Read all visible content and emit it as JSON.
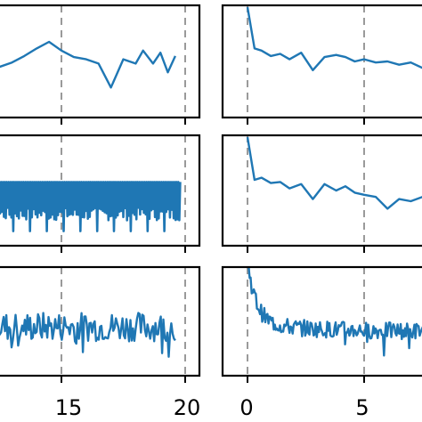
{
  "chart_data": [
    {
      "type": "line",
      "panel": "row1-left",
      "xlim": [
        10,
        20.5
      ],
      "vlines": [
        15,
        20
      ],
      "grid": false,
      "series": [
        {
          "color": "#1f77b4",
          "x": [
            10.0,
            10.5,
            11.0,
            11.5,
            12.0,
            12.5,
            13.0,
            13.5,
            14.0,
            14.5,
            15.0,
            15.5,
            16.0,
            16.5,
            17.0,
            17.5,
            18.0,
            18.3,
            18.7,
            19.0,
            19.3,
            19.6
          ],
          "y": [
            0.46,
            0.5,
            0.44,
            0.48,
            0.52,
            0.45,
            0.49,
            0.55,
            0.62,
            0.68,
            0.6,
            0.54,
            0.52,
            0.48,
            0.26,
            0.52,
            0.48,
            0.6,
            0.48,
            0.58,
            0.4,
            0.55
          ]
        }
      ]
    },
    {
      "type": "line",
      "panel": "row1-right",
      "xlim": [
        -1,
        9
      ],
      "vlines": [
        0,
        5
      ],
      "grid": false,
      "series": [
        {
          "color": "#1f77b4",
          "x": [
            0.0,
            0.3,
            0.6,
            1.0,
            1.4,
            1.8,
            2.3,
            2.8,
            3.3,
            3.8,
            4.2,
            4.6,
            5.0,
            5.5,
            6.0,
            6.5,
            7.0,
            7.5,
            8.0,
            8.5
          ],
          "y": [
            1.0,
            0.62,
            0.6,
            0.55,
            0.57,
            0.52,
            0.58,
            0.42,
            0.54,
            0.56,
            0.54,
            0.5,
            0.52,
            0.49,
            0.5,
            0.47,
            0.49,
            0.44,
            0.46,
            0.48
          ]
        }
      ]
    },
    {
      "type": "line",
      "panel": "row2-left",
      "xlim": [
        10,
        20.5
      ],
      "vlines": [
        15,
        20
      ],
      "grid": false,
      "series": [
        {
          "color": "#1f77b4",
          "pattern": "dense-oscillation",
          "y_range": [
            0.15,
            0.6
          ],
          "x_range": [
            10.0,
            19.8
          ]
        }
      ]
    },
    {
      "type": "line",
      "panel": "row2-right",
      "xlim": [
        -1,
        9
      ],
      "vlines": [
        0,
        5
      ],
      "grid": false,
      "series": [
        {
          "color": "#1f77b4",
          "x": [
            0.0,
            0.3,
            0.6,
            1.0,
            1.4,
            1.8,
            2.3,
            2.8,
            3.3,
            3.8,
            4.2,
            4.6,
            5.0,
            5.5,
            6.0,
            6.5,
            7.0,
            7.5,
            8.0,
            8.5
          ],
          "y": [
            1.0,
            0.6,
            0.62,
            0.57,
            0.58,
            0.52,
            0.56,
            0.42,
            0.56,
            0.5,
            0.54,
            0.48,
            0.46,
            0.44,
            0.33,
            0.42,
            0.4,
            0.44,
            0.38,
            0.4
          ]
        }
      ]
    },
    {
      "type": "line",
      "panel": "row3-left",
      "xlim": [
        10,
        20.5
      ],
      "vlines": [
        15,
        20
      ],
      "grid": false,
      "series": [
        {
          "color": "#1f77b4",
          "pattern": "noisy",
          "y_range": [
            0.2,
            0.6
          ],
          "x_range": [
            10.0,
            19.6
          ],
          "mean": 0.45
        }
      ]
    },
    {
      "type": "line",
      "panel": "row3-right",
      "xlim": [
        -1,
        9
      ],
      "vlines": [
        0,
        5
      ],
      "grid": false,
      "series": [
        {
          "color": "#1f77b4",
          "pattern": "noisy-decay",
          "start": 1.0,
          "end": 0.4,
          "x_range": [
            0.0,
            9.0
          ]
        }
      ]
    }
  ],
  "x_tick_labels_left": [
    "15",
    "20"
  ],
  "x_tick_labels_right": [
    "0",
    "5"
  ]
}
